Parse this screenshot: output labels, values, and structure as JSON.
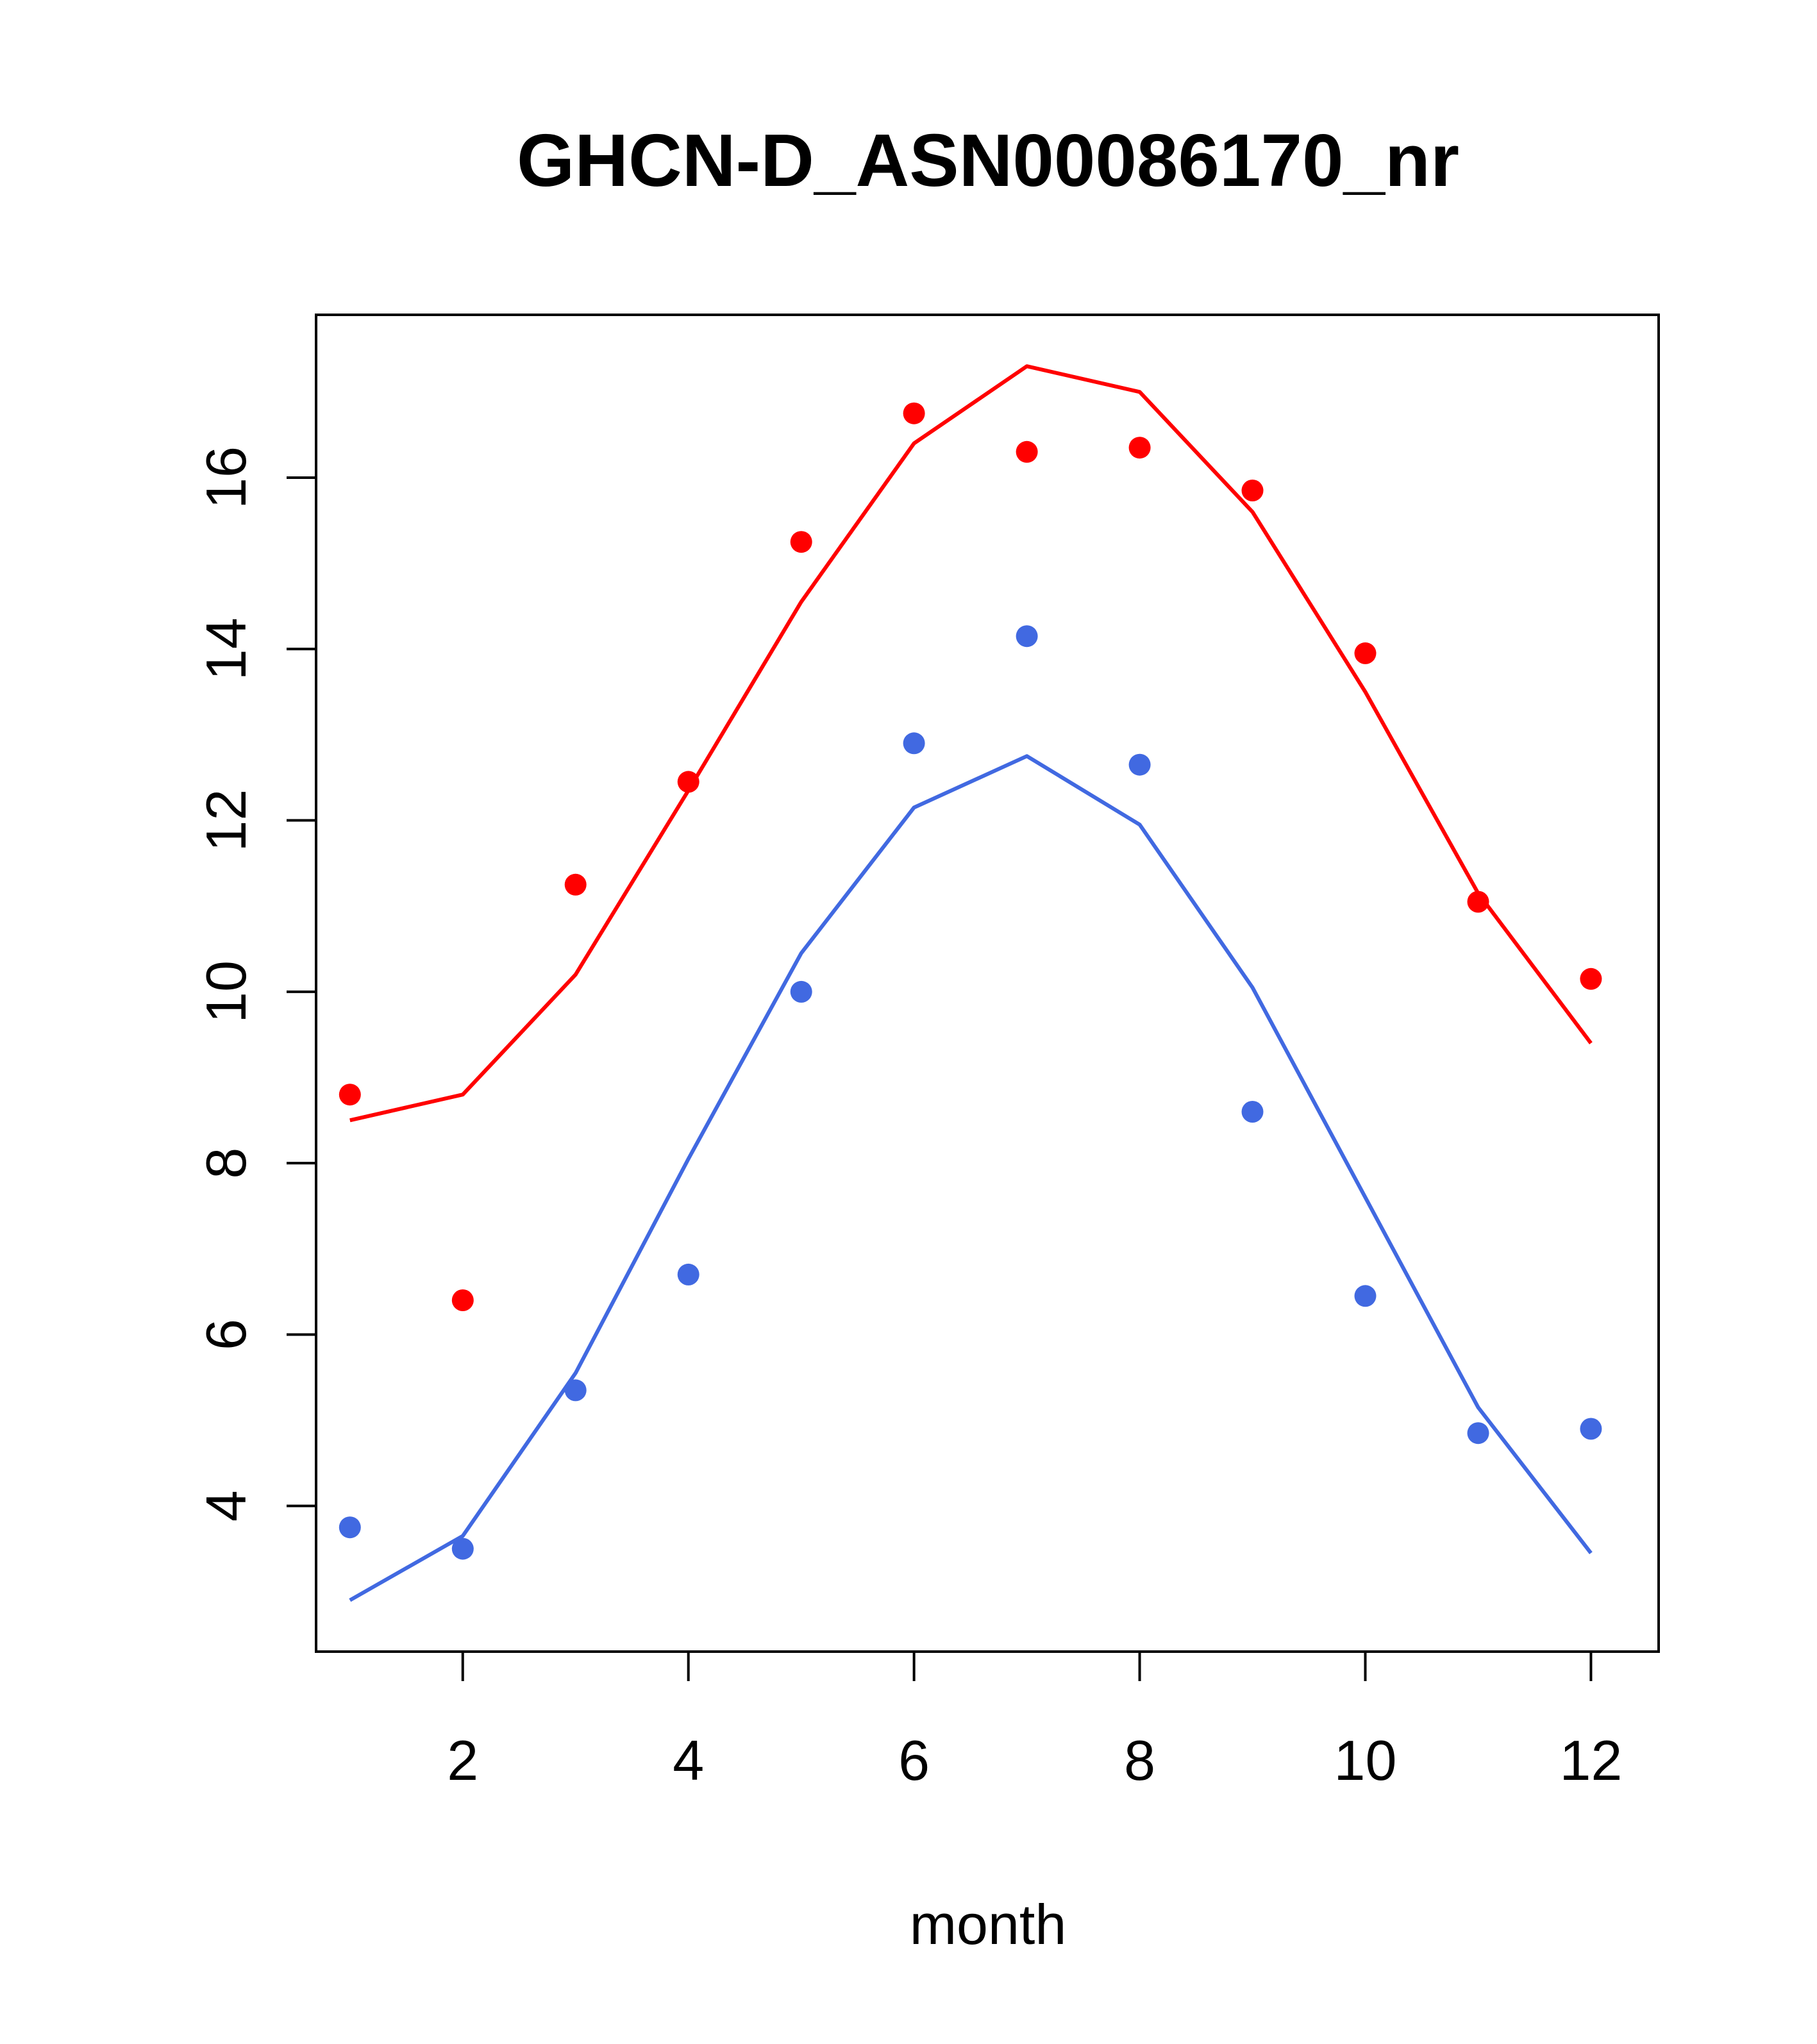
{
  "chart_data": {
    "type": "line",
    "title": "GHCN-D_ASN00086170_nr",
    "xlabel": "month",
    "ylabel": "",
    "xlim": [
      0.7,
      12.6
    ],
    "ylim": [
      2.3,
      17.9
    ],
    "xticks": [
      "2",
      "4",
      "6",
      "8",
      "10",
      "12"
    ],
    "yticks": [
      "4",
      "6",
      "8",
      "10",
      "12",
      "14",
      "16"
    ],
    "grid": false,
    "legend": "none",
    "series": [
      {
        "color": "#ff0000",
        "points": [
          {
            "x": 1,
            "y": 8.8
          },
          {
            "x": 2,
            "y": 6.4
          },
          {
            "x": 3,
            "y": 11.25
          },
          {
            "x": 4,
            "y": 12.45
          },
          {
            "x": 5,
            "y": 15.25
          },
          {
            "x": 6,
            "y": 16.75
          },
          {
            "x": 7,
            "y": 16.3
          },
          {
            "x": 8,
            "y": 16.35
          },
          {
            "x": 9,
            "y": 15.85
          },
          {
            "x": 10,
            "y": 13.95
          },
          {
            "x": 11,
            "y": 11.05
          },
          {
            "x": 12,
            "y": 10.15
          }
        ],
        "fit": [
          {
            "x": 1,
            "y": 8.5
          },
          {
            "x": 2,
            "y": 8.8
          },
          {
            "x": 3,
            "y": 10.2
          },
          {
            "x": 4,
            "y": 12.35
          },
          {
            "x": 5,
            "y": 14.55
          },
          {
            "x": 6,
            "y": 16.4
          },
          {
            "x": 7,
            "y": 17.3
          },
          {
            "x": 8,
            "y": 17.0
          },
          {
            "x": 9,
            "y": 15.6
          },
          {
            "x": 10,
            "y": 13.5
          },
          {
            "x": 11,
            "y": 11.15
          },
          {
            "x": 12,
            "y": 9.4
          }
        ]
      },
      {
        "color": "#4169e1",
        "points": [
          {
            "x": 1,
            "y": 3.75
          },
          {
            "x": 2,
            "y": 3.5
          },
          {
            "x": 3,
            "y": 5.35
          },
          {
            "x": 4,
            "y": 6.7
          },
          {
            "x": 5,
            "y": 10.0
          },
          {
            "x": 6,
            "y": 12.9
          },
          {
            "x": 7,
            "y": 14.15
          },
          {
            "x": 8,
            "y": 12.65
          },
          {
            "x": 9,
            "y": 8.6
          },
          {
            "x": 10,
            "y": 6.45
          },
          {
            "x": 11,
            "y": 4.85
          },
          {
            "x": 12,
            "y": 4.9
          }
        ],
        "fit": [
          {
            "x": 1,
            "y": 2.9
          },
          {
            "x": 2,
            "y": 3.65
          },
          {
            "x": 3,
            "y": 5.55
          },
          {
            "x": 4,
            "y": 8.05
          },
          {
            "x": 5,
            "y": 10.45
          },
          {
            "x": 6,
            "y": 12.15
          },
          {
            "x": 7,
            "y": 12.75
          },
          {
            "x": 8,
            "y": 11.95
          },
          {
            "x": 9,
            "y": 10.05
          },
          {
            "x": 10,
            "y": 7.6
          },
          {
            "x": 11,
            "y": 5.15
          },
          {
            "x": 12,
            "y": 3.45
          }
        ]
      }
    ]
  }
}
